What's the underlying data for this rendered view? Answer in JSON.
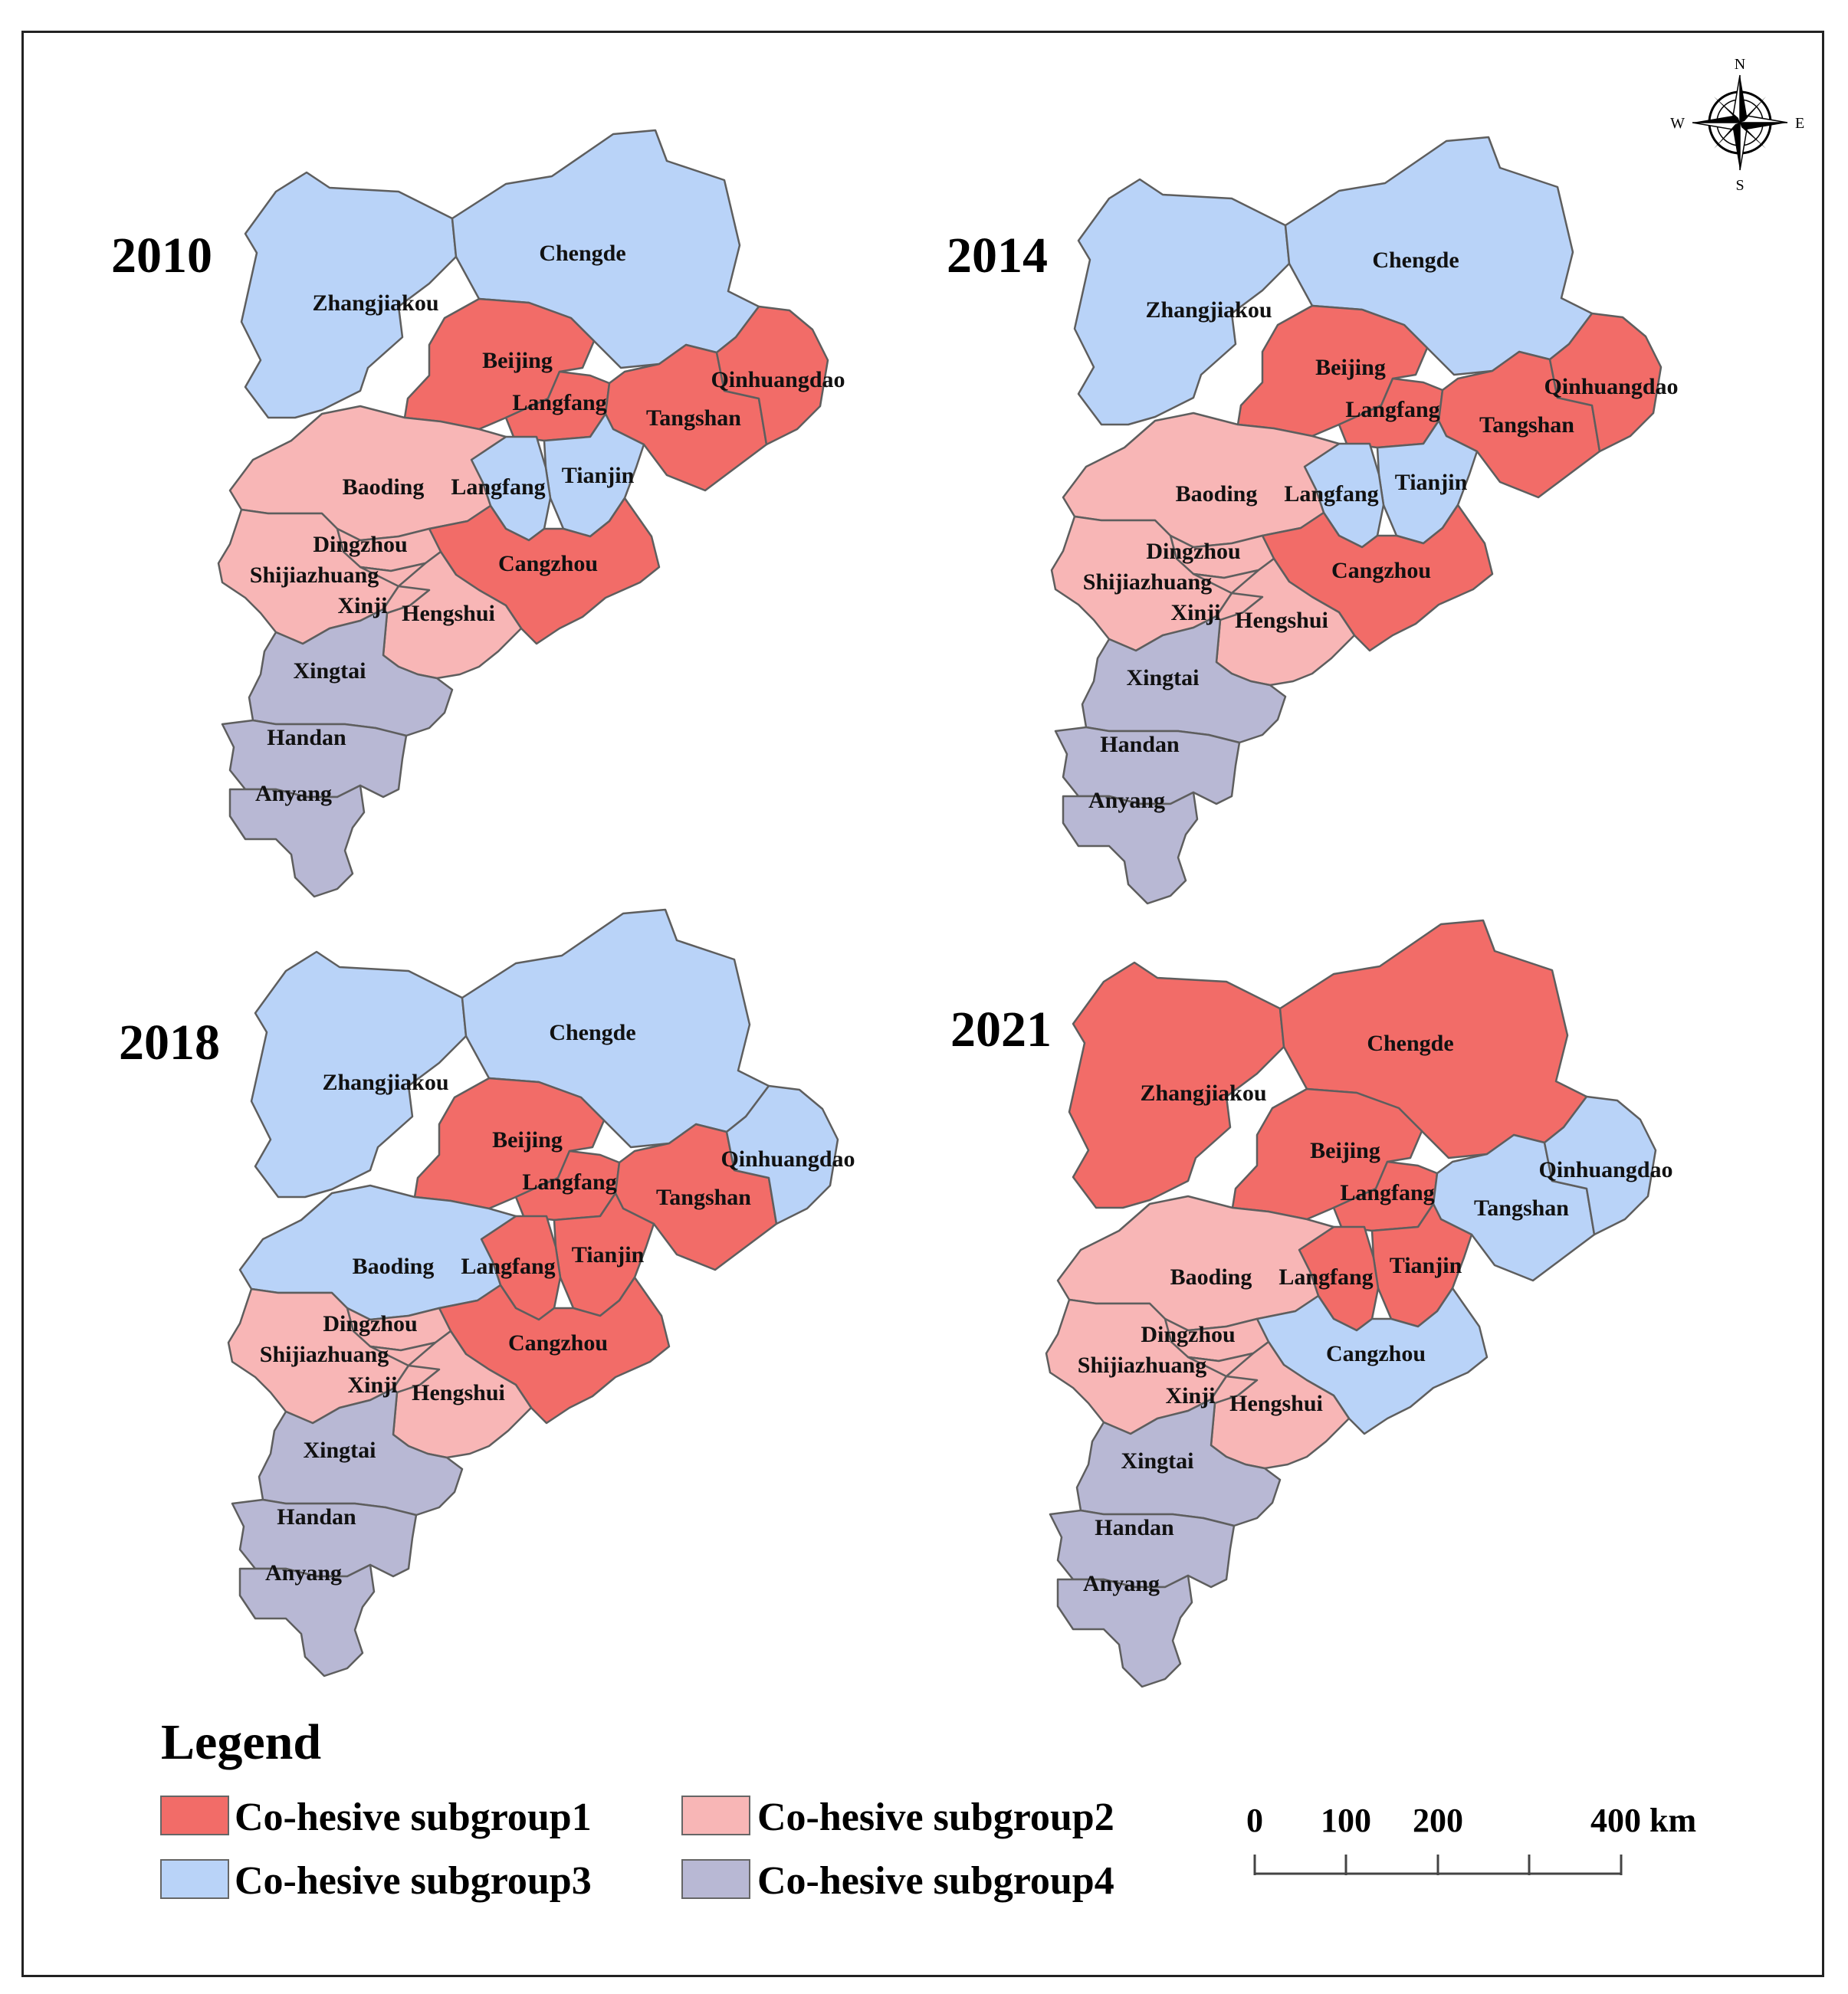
{
  "colors": {
    "subgroup1": "#f26c68",
    "subgroup2": "#f8b6b6",
    "subgroup3": "#b9d3f8",
    "subgroup4": "#b8b8d4"
  },
  "panels": [
    {
      "year": "2010",
      "assign": {
        "Zhangjiakou": 3,
        "Chengde": 3,
        "Beijing": 1,
        "LangfangN": 1,
        "Tangshan": 1,
        "Qinhuangdao": 1,
        "Tianjin": 3,
        "LangfangS": 3,
        "Baoding": 2,
        "Cangzhou": 1,
        "Dingzhou": 2,
        "Shijiazhuang": 2,
        "Xinji": 2,
        "Hengshui": 2,
        "Xingtai": 4,
        "Handan": 4,
        "Anyang": 4
      }
    },
    {
      "year": "2014",
      "assign": {
        "Zhangjiakou": 3,
        "Chengde": 3,
        "Beijing": 1,
        "LangfangN": 1,
        "Tangshan": 1,
        "Qinhuangdao": 1,
        "Tianjin": 3,
        "LangfangS": 3,
        "Baoding": 2,
        "Cangzhou": 1,
        "Dingzhou": 2,
        "Shijiazhuang": 2,
        "Xinji": 2,
        "Hengshui": 2,
        "Xingtai": 4,
        "Handan": 4,
        "Anyang": 4
      }
    },
    {
      "year": "2018",
      "assign": {
        "Zhangjiakou": 3,
        "Chengde": 3,
        "Beijing": 1,
        "LangfangN": 1,
        "Tangshan": 1,
        "Qinhuangdao": 3,
        "Tianjin": 1,
        "LangfangS": 1,
        "Baoding": 3,
        "Cangzhou": 1,
        "Dingzhou": 2,
        "Shijiazhuang": 2,
        "Xinji": 2,
        "Hengshui": 2,
        "Xingtai": 4,
        "Handan": 4,
        "Anyang": 4
      }
    },
    {
      "year": "2021",
      "assign": {
        "Zhangjiakou": 1,
        "Chengde": 1,
        "Beijing": 1,
        "LangfangN": 1,
        "Tangshan": 3,
        "Qinhuangdao": 3,
        "Tianjin": 1,
        "LangfangS": 1,
        "Baoding": 2,
        "Cangzhou": 3,
        "Dingzhou": 2,
        "Shijiazhuang": 2,
        "Xinji": 2,
        "Hengshui": 2,
        "Xingtai": 4,
        "Handan": 4,
        "Anyang": 4
      }
    }
  ],
  "region_labels": {
    "Zhangjiakou": "Zhangjiakou",
    "Chengde": "Chengde",
    "Beijing": "Beijing",
    "LangfangN": "Langfang",
    "Tangshan": "Tangshan",
    "Qinhuangdao": "Qinhuangdao",
    "Tianjin": "Tianjin",
    "LangfangS": "Langfang",
    "Baoding": "Baoding",
    "Cangzhou": "Cangzhou",
    "Dingzhou": "Dingzhou",
    "Shijiazhuang": "Shijiazhuang",
    "Xinji": "Xinji",
    "Hengshui": "Hengshui",
    "Xingtai": "Xingtai",
    "Handan": "Handan",
    "Anyang": "Anyang"
  },
  "legend": {
    "title": "Legend",
    "items": [
      {
        "label": "Co-hesive subgroup1",
        "color": "#f26c68"
      },
      {
        "label": "Co-hesive subgroup2",
        "color": "#f8b6b6"
      },
      {
        "label": "Co-hesive subgroup3",
        "color": "#b9d3f8"
      },
      {
        "label": "Co-hesive subgroup4",
        "color": "#b8b8d4"
      }
    ]
  },
  "scale_bar": {
    "ticks": [
      "0",
      "100",
      "200",
      "400 km"
    ]
  },
  "compass": {
    "n": "N",
    "s": "S",
    "e": "E",
    "w": "W"
  }
}
